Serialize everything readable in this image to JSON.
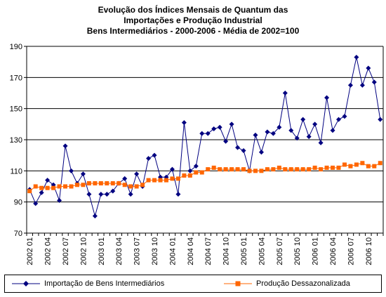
{
  "chart_data": {
    "type": "line",
    "title_lines": [
      "Evolução dos Índices Mensais de Quantum das",
      "Importações e Produção Industrial",
      "Bens Intermediários - 2000-2006 - Média de 2002=100"
    ],
    "ylim": [
      70,
      190
    ],
    "yticks": [
      70,
      90,
      110,
      130,
      150,
      170,
      190
    ],
    "start_month": "2002 01",
    "x_tick_labels": [
      "2002 01",
      "2002 04",
      "2002 07",
      "2002 10",
      "2003 01",
      "2003 04",
      "2003 07",
      "2003 10",
      "2004 01",
      "2004 04",
      "2004 07",
      "2004 10",
      "2005 01",
      "2005 04",
      "2005 07",
      "2005 10",
      "2006 01",
      "2006 04",
      "2006 07",
      "2006 10"
    ],
    "grid": "horizontal",
    "legend_position": "bottom",
    "series": [
      {
        "name": "Importação de Bens Intermediários",
        "color": "#000080",
        "marker": "diamond",
        "values": [
          98,
          89,
          96,
          104,
          101,
          91,
          126,
          110,
          102,
          108,
          95,
          81,
          95,
          95,
          97,
          102,
          105,
          95,
          108,
          100,
          118,
          120,
          106,
          106,
          111,
          95,
          141,
          110,
          113,
          134,
          134,
          137,
          138,
          129,
          140,
          125,
          123,
          110,
          133,
          122,
          135,
          134,
          138,
          160,
          136,
          131,
          143,
          132,
          140,
          128,
          157,
          136,
          143,
          145,
          165,
          183,
          165,
          176,
          167,
          143
        ]
      },
      {
        "name": "Produção Dessazonalizada",
        "color": "#FF6600",
        "marker": "square",
        "values": [
          97,
          100,
          99,
          99,
          99,
          100,
          100,
          100,
          101,
          101,
          102,
          102,
          102,
          102,
          102,
          102,
          101,
          100,
          100,
          101,
          104,
          104,
          104,
          104,
          105,
          105,
          107,
          107,
          109,
          109,
          111,
          112,
          111,
          111,
          111,
          111,
          111,
          110,
          110,
          110,
          111,
          111,
          112,
          111,
          111,
          111,
          111,
          111,
          112,
          111,
          112,
          112,
          112,
          114,
          113,
          114,
          115,
          113,
          113,
          115
        ]
      }
    ]
  }
}
